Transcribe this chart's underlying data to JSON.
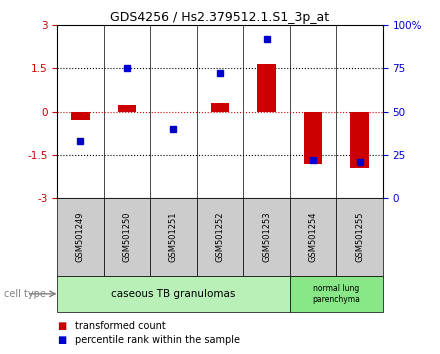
{
  "title": "GDS4256 / Hs2.379512.1.S1_3p_at",
  "samples": [
    "GSM501249",
    "GSM501250",
    "GSM501251",
    "GSM501252",
    "GSM501253",
    "GSM501254",
    "GSM501255"
  ],
  "red_values": [
    -0.28,
    0.22,
    -0.02,
    0.28,
    1.65,
    -1.82,
    -1.95
  ],
  "blue_values_pct": [
    33,
    75,
    40,
    72,
    92,
    22,
    21
  ],
  "ylim_left": [
    -3,
    3
  ],
  "ylim_right": [
    0,
    100
  ],
  "yticks_left": [
    -3,
    -1.5,
    0,
    1.5,
    3
  ],
  "yticks_right": [
    0,
    25,
    50,
    75,
    100
  ],
  "ytick_labels_right": [
    "0",
    "25",
    "50",
    "75",
    "100%"
  ],
  "group1_label": "caseous TB granulomas",
  "group1_indices": [
    0,
    1,
    2,
    3,
    4
  ],
  "group2_label": "normal lung\nparenchyma",
  "group2_indices": [
    5,
    6
  ],
  "cell_type_label": "cell type",
  "legend_red": "transformed count",
  "legend_blue": "percentile rank within the sample",
  "bar_color_red": "#cc0000",
  "bar_color_blue": "#0000cc",
  "group1_bg": "#b8f0b8",
  "group2_bg": "#88e888",
  "sample_bg": "#cccccc",
  "zero_line_color": "#cc0000",
  "dotted_line_color": "#000000",
  "bar_width": 0.4,
  "title_fontsize": 9,
  "tick_fontsize": 7.5,
  "sample_fontsize": 6,
  "group_fontsize": 7.5,
  "legend_fontsize": 7
}
